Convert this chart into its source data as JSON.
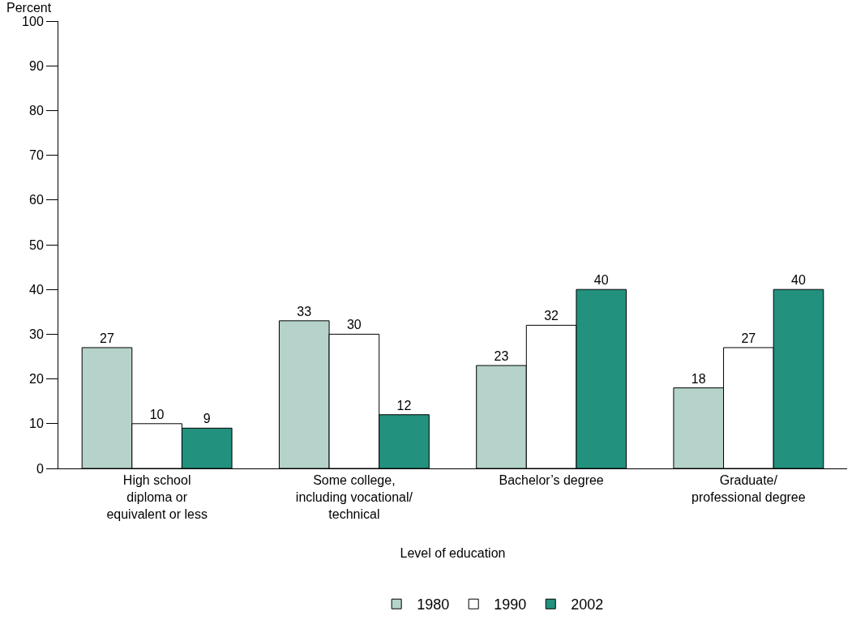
{
  "chart_data": {
    "type": "bar",
    "xlabel": "Level of education",
    "ylabel": "Percent",
    "categories": [
      "High school\ndiploma or\nequivalent or less",
      "Some college,\nincluding vocational/\ntechnical",
      "Bachelor’s degree",
      "Graduate/\nprofessional degree"
    ],
    "series": [
      {
        "name": "1980",
        "color": "#b5d3cb",
        "values": [
          27,
          33,
          23,
          18
        ]
      },
      {
        "name": "1990",
        "color": "#ffffff",
        "values": [
          10,
          30,
          32,
          27
        ]
      },
      {
        "name": "2002",
        "color": "#22917e",
        "values": [
          9,
          12,
          40,
          40
        ]
      }
    ],
    "ylim": [
      0,
      100
    ],
    "yticks": [
      0,
      10,
      20,
      30,
      40,
      50,
      60,
      70,
      80,
      90,
      100
    ],
    "data_labels": true,
    "legend": "bottom"
  }
}
